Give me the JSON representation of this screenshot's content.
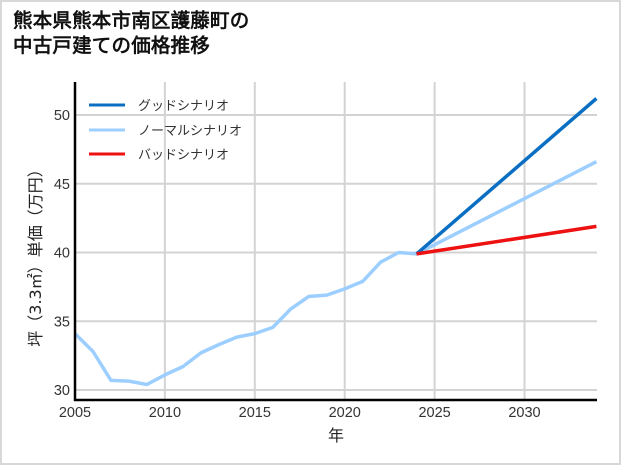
{
  "title": {
    "line1": "熊本県熊本市南区護藤町の",
    "line2": "中古戸建ての価格推移"
  },
  "chart_data": {
    "type": "line",
    "title": "熊本県熊本市南区護藤町の中古戸建ての価格推移",
    "xlabel": "年",
    "ylabel": "坪（3.3㎡）単価（万円）",
    "xlim": [
      2005,
      2034
    ],
    "ylim": [
      29.4,
      52.4
    ],
    "xticks": [
      2005,
      2010,
      2015,
      2020,
      2025,
      2030
    ],
    "yticks": [
      30,
      35,
      40,
      45,
      50
    ],
    "grid": true,
    "legend_position": "upper left",
    "series": [
      {
        "name": "グッドシナリオ",
        "color": "#0a6fc2",
        "x": [
          2024,
          2034
        ],
        "values": [
          39.9,
          51.2
        ]
      },
      {
        "name": "ノーマルシナリオ",
        "color": "#9ccfff",
        "x": [
          2005,
          2006,
          2007,
          2008,
          2009,
          2010,
          2011,
          2012,
          2013,
          2014,
          2015,
          2016,
          2017,
          2018,
          2019,
          2020,
          2021,
          2022,
          2023,
          2024,
          2034
        ],
        "values": [
          34.1,
          32.8,
          30.7,
          30.65,
          30.4,
          31.1,
          31.7,
          32.7,
          33.3,
          33.85,
          34.1,
          34.55,
          35.9,
          36.8,
          36.9,
          37.35,
          37.9,
          39.3,
          40.0,
          39.9,
          46.6
        ]
      },
      {
        "name": "バッドシナリオ",
        "color": "#ee1111",
        "x": [
          2024,
          2034
        ],
        "values": [
          39.9,
          41.9
        ]
      }
    ]
  }
}
